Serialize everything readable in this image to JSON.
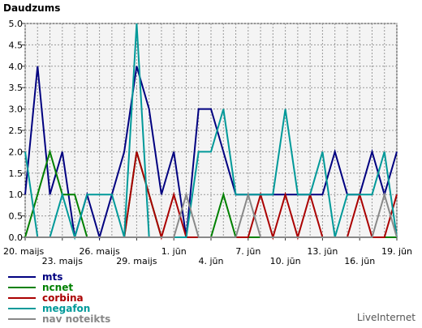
{
  "chart_data": {
    "type": "line",
    "title": "Daudzums",
    "ylim": [
      0,
      5
    ],
    "yticks": [
      "0.0",
      "0.5",
      "1.0",
      "1.5",
      "2.0",
      "2.5",
      "3.0",
      "3.5",
      "4.0",
      "4.5",
      "5.0"
    ],
    "xticks": [
      {
        "index": 0,
        "label": "20. maijs",
        "row": 1
      },
      {
        "index": 3,
        "label": "23. maijs",
        "row": 2
      },
      {
        "index": 6,
        "label": "26. maijs",
        "row": 1
      },
      {
        "index": 9,
        "label": "29. maijs",
        "row": 2
      },
      {
        "index": 12,
        "label": "1. jūn",
        "row": 1
      },
      {
        "index": 15,
        "label": "4. jūn",
        "row": 2
      },
      {
        "index": 18,
        "label": "7. jūn",
        "row": 1
      },
      {
        "index": 21,
        "label": "10. jūn",
        "row": 2
      },
      {
        "index": 24,
        "label": "13. jūn",
        "row": 1
      },
      {
        "index": 27,
        "label": "16. jūn",
        "row": 2
      },
      {
        "index": 30,
        "label": "19. jūn",
        "row": 1
      }
    ],
    "n_points": 31,
    "grid": true,
    "legend_placement": "bottom-left",
    "series": [
      {
        "name": "mts",
        "color": "#000080",
        "values": [
          1,
          4,
          1,
          2,
          0,
          1,
          0,
          1,
          2,
          4,
          3,
          1,
          2,
          0,
          3,
          3,
          2,
          1,
          1,
          1,
          1,
          1,
          1,
          1,
          1,
          2,
          1,
          1,
          2,
          1,
          2
        ]
      },
      {
        "name": "ncnet",
        "color": "#008000",
        "values": [
          0,
          1,
          2,
          1,
          1,
          0,
          0,
          0,
          0,
          2,
          1,
          0,
          0,
          0,
          0,
          0,
          1,
          0,
          0,
          0,
          0,
          0,
          0,
          0,
          0,
          0,
          0,
          0,
          0,
          0,
          0
        ]
      },
      {
        "name": "corbina",
        "color": "#aa0000",
        "values": [
          0,
          0,
          0,
          0,
          0,
          0,
          0,
          0,
          0,
          2,
          1,
          0,
          1,
          0,
          0,
          0,
          0,
          0,
          0,
          1,
          0,
          1,
          0,
          1,
          0,
          0,
          0,
          1,
          0,
          0,
          1
        ]
      },
      {
        "name": "megafon",
        "color": "#009999",
        "values": [
          2,
          0,
          0,
          1,
          0,
          1,
          1,
          1,
          0,
          5,
          0,
          0,
          0,
          0,
          2,
          2,
          3,
          1,
          1,
          1,
          1,
          3,
          1,
          1,
          2,
          0,
          1,
          1,
          1,
          2,
          0
        ]
      },
      {
        "name": "nav noteikts",
        "color": "#888888",
        "values": [
          0,
          0,
          0,
          0,
          0,
          0,
          0,
          0,
          0,
          0,
          0,
          0,
          0,
          1,
          0,
          0,
          0,
          0,
          1,
          0,
          0,
          0,
          0,
          0,
          0,
          0,
          0,
          0,
          0,
          1,
          0
        ]
      }
    ]
  },
  "watermark": "LiveInternet"
}
